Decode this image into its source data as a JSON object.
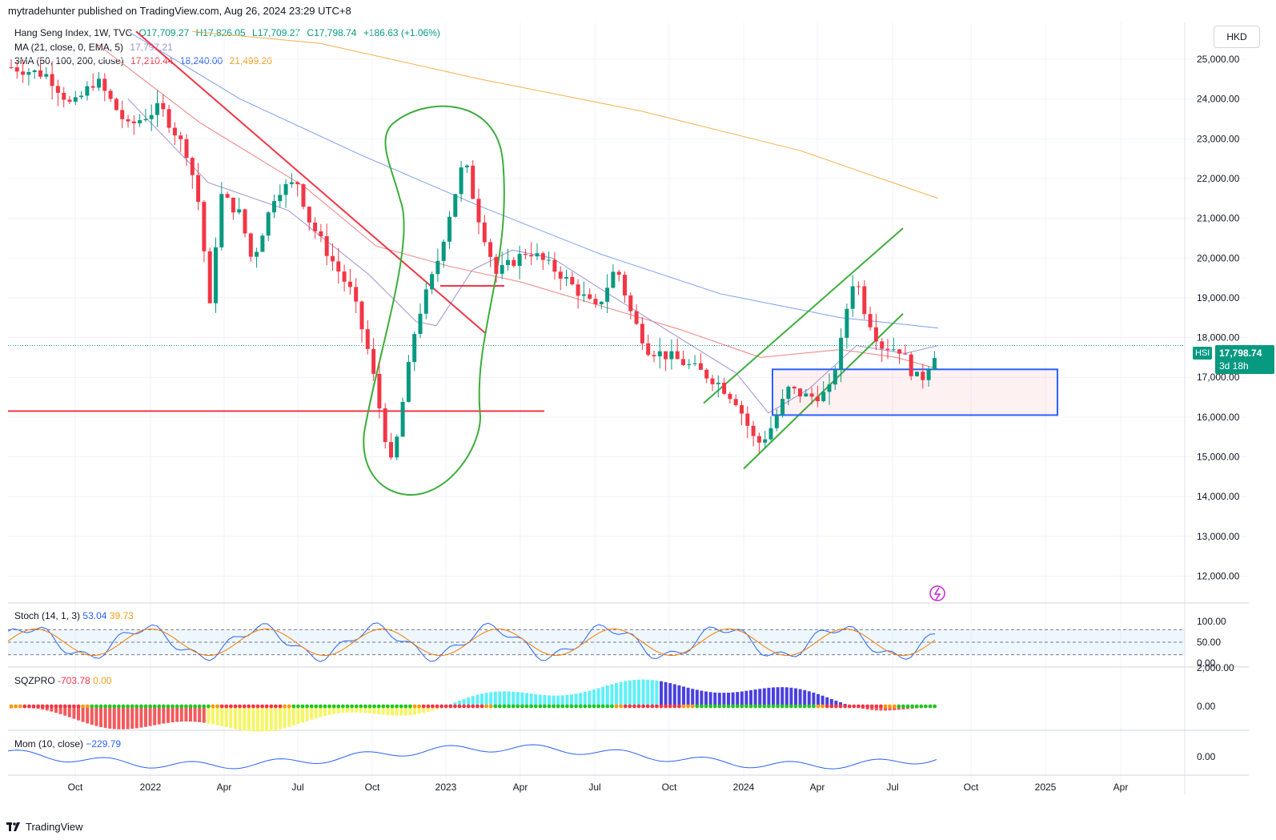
{
  "header": {
    "publisher": "mytradehunter published on TradingView.com, Aug 26, 2024 23:29 UTC+8"
  },
  "legend": {
    "symbol": "Hang Seng Index, 1W, TVC",
    "open": "O17,709.27",
    "high": "H17,826.05",
    "low": "L17,709.27",
    "close": "C17,798.74",
    "change": "+186.63 (+1.06%)",
    "ma_label": "MA (21, close, 0, EMA, 5)",
    "ma_value": "17,797.21",
    "sma_label": "3MA (50, 100, 200, close)",
    "sma_values": [
      "17,210.44",
      "18,240.00",
      "21,499.20"
    ]
  },
  "currency": "HKD",
  "price_axis": [
    "25,000.00",
    "24,000.00",
    "23,000.00",
    "22,000.00",
    "21,000.00",
    "20,000.00",
    "19,000.00",
    "18,000.00",
    "17,000.00",
    "16,000.00",
    "15,000.00",
    "14,000.00",
    "13,000.00",
    "12,000.00"
  ],
  "last_price": {
    "symbol": "HSI",
    "value": "17,798.74",
    "countdown": "3d 18h"
  },
  "stoch": {
    "label": "Stoch (14, 1, 3)",
    "k": "53.04",
    "d": "39.73",
    "axis": [
      "100.00",
      "50.00",
      "0.00"
    ]
  },
  "sqz": {
    "label": "SQZPRO",
    "v1": "-703.78",
    "v2": "0.00",
    "axis": [
      "2,000.00",
      "0.00"
    ]
  },
  "mom": {
    "label": "Mom (10, close)",
    "value": "−229.79",
    "axis": [
      "0.00"
    ]
  },
  "time_axis": [
    "Oct",
    "2022",
    "Apr",
    "Jul",
    "Oct",
    "2023",
    "Apr",
    "Jul",
    "Oct",
    "2024",
    "Apr",
    "Jul",
    "Oct",
    "2025",
    "Apr"
  ],
  "footer": {
    "brand": "TradingView"
  },
  "colors": {
    "up": "#089981",
    "down": "#f23645",
    "ma21": "#9c92d6",
    "sma50": "#f08080",
    "sma100": "#7b9ef0",
    "sma200": "#f5b04a",
    "annotation_green": "#3cae3c",
    "annotation_red": "#f23645",
    "box_blue": "#2962ff"
  },
  "chart_data": {
    "type": "candlestick",
    "weekly_closes_approx": [
      {
        "x": "2021-09",
        "y": 24500
      },
      {
        "x": "2021-12",
        "y": 23400
      },
      {
        "x": "2022-03",
        "y": 21500
      },
      {
        "x": "2022-06",
        "y": 21800
      },
      {
        "x": "2022-09",
        "y": 17900
      },
      {
        "x": "2022-10",
        "y": 14700
      },
      {
        "x": "2023-01",
        "y": 22000
      },
      {
        "x": "2023-03",
        "y": 19800
      },
      {
        "x": "2023-06",
        "y": 19100
      },
      {
        "x": "2023-10",
        "y": 17200
      },
      {
        "x": "2024-01",
        "y": 15300
      },
      {
        "x": "2024-05",
        "y": 19600
      },
      {
        "x": "2024-07",
        "y": 17200
      },
      {
        "x": "2024-08",
        "y": 17798.74
      }
    ],
    "ylim": [
      11500,
      25600
    ]
  }
}
